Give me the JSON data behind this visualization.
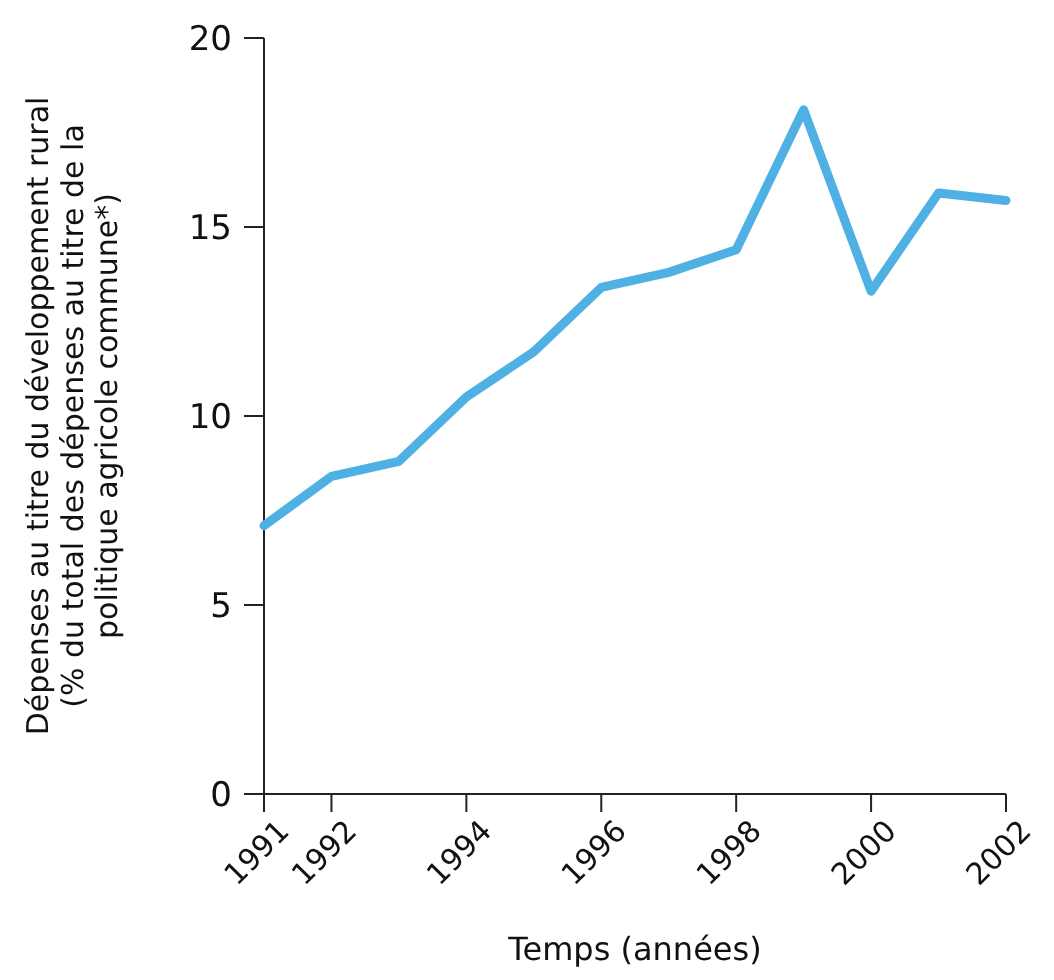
{
  "chart_data": {
    "type": "line",
    "xlabel": "Temps (années)",
    "ylabel": "Dépenses au titre du développement rural (% du total des dépenses au titre de la politique agricole commune*)",
    "x": [
      1991,
      1992,
      1993,
      1994,
      1995,
      1996,
      1997,
      1998,
      1999,
      2000,
      2001,
      2002
    ],
    "series": [
      {
        "color": "#4fb0e3",
        "values": [
          7.1,
          8.4,
          8.8,
          10.5,
          11.7,
          13.4,
          13.8,
          14.4,
          18.1,
          13.3,
          15.9,
          15.7
        ]
      }
    ],
    "xlim": [
      1991,
      2002
    ],
    "xticks": [
      1991,
      1992,
      1994,
      1996,
      1998,
      2000,
      2002
    ],
    "ylim": [
      0,
      20
    ],
    "yticks": [
      0,
      5,
      10,
      15,
      20
    ],
    "grid": false,
    "marker": "none",
    "line_style": "solid"
  }
}
